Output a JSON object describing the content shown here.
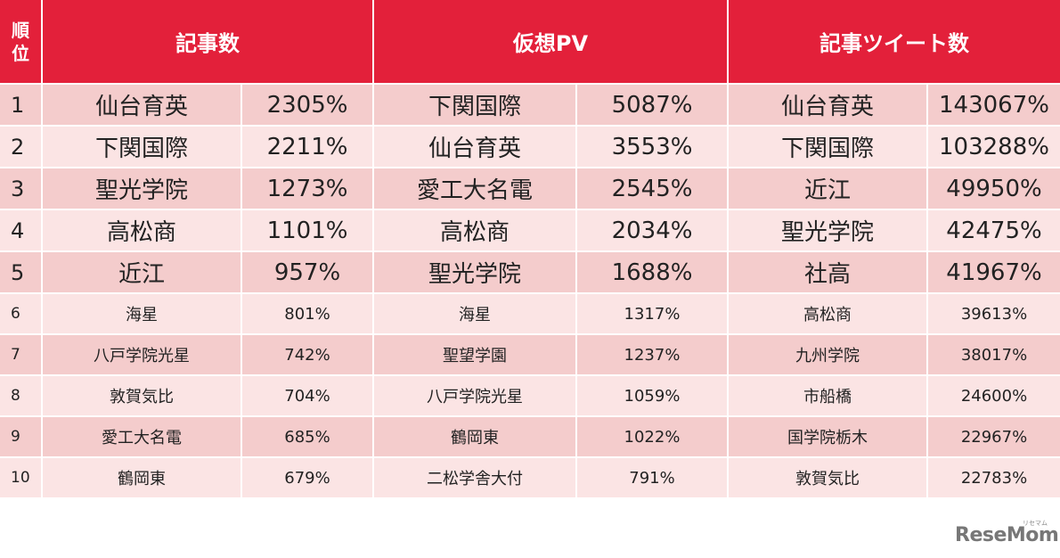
{
  "table": {
    "header": [
      "順位",
      "記事数",
      "仮想PV",
      "記事ツイート数"
    ],
    "rows": [
      [
        "1",
        "仙台育英",
        "2305%",
        "下関国際",
        "5087%",
        "仙台育英",
        "143067%"
      ],
      [
        "2",
        "下関国際",
        "2211%",
        "仙台育英",
        "3553%",
        "下関国際",
        "103288%"
      ],
      [
        "3",
        "聖光学院",
        "1273%",
        "愛工大名電",
        "2545%",
        "近江",
        "49950%"
      ],
      [
        "4",
        "高松商",
        "1101%",
        "高松商",
        "2034%",
        "聖光学院",
        "42475%"
      ],
      [
        "5",
        "近江",
        "957%",
        "聖光学院",
        "1688%",
        "社高",
        "41967%"
      ],
      [
        "6",
        "海星",
        "801%",
        "海星",
        "1317%",
        "高松商",
        "39613%"
      ],
      [
        "7",
        "八戸学院光星",
        "742%",
        "聖望学園",
        "1237%",
        "九州学院",
        "38017%"
      ],
      [
        "8",
        "敦賀気比",
        "704%",
        "八戸学院光星",
        "1059%",
        "市船橋",
        "24600%"
      ],
      [
        "9",
        "愛工大名電",
        "685%",
        "鶴岡東",
        "1022%",
        "国学院栃木",
        "22967%"
      ],
      [
        "10",
        "鶴岡東",
        "679%",
        "二松学舎大付",
        "791%",
        "敦賀気比",
        "22783%"
      ]
    ]
  },
  "logo": {
    "text": "ReseMom",
    "kana": "リセマム"
  }
}
